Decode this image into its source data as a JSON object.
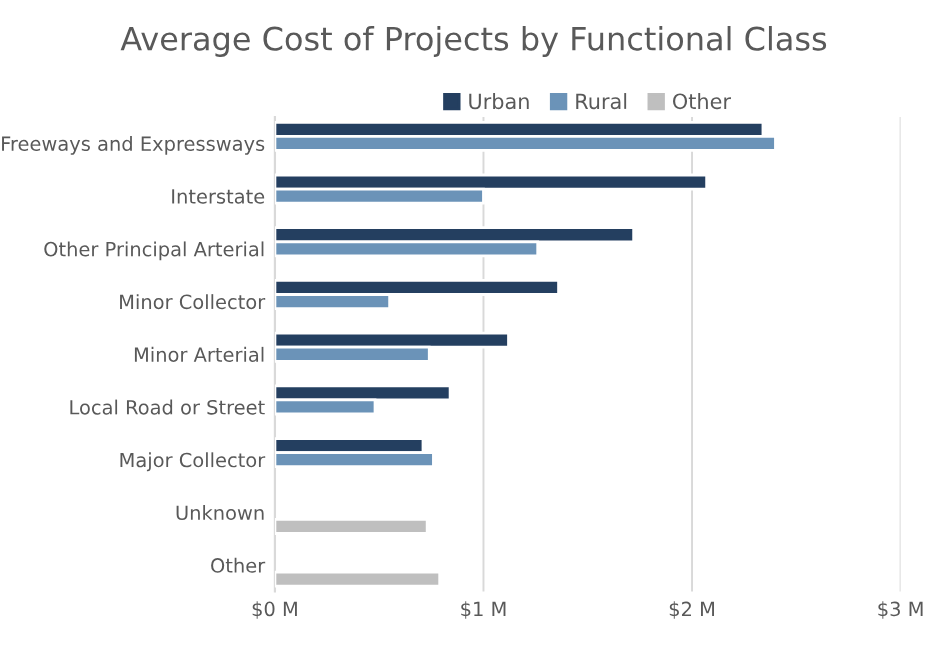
{
  "chart_data": {
    "type": "bar",
    "orientation": "horizontal",
    "title": "Average Cost of Projects by Functional Class",
    "categories": [
      "Freeways and Expressways",
      "Interstate",
      "Other Principal Arterial",
      "Minor Collector",
      "Minor Arterial",
      "Local Road or Street",
      "Major Collector",
      "Unknown",
      "Other"
    ],
    "series": [
      {
        "name": "Urban",
        "color": "#243f60",
        "values": [
          2.34,
          2.07,
          1.72,
          1.36,
          1.12,
          0.84,
          0.71,
          null,
          null
        ]
      },
      {
        "name": "Rural",
        "color": "#6b93b8",
        "values": [
          2.4,
          1.0,
          1.26,
          0.55,
          0.74,
          0.48,
          0.76,
          null,
          null
        ]
      },
      {
        "name": "Other",
        "color": "#bfbfbf",
        "values": [
          null,
          null,
          null,
          null,
          null,
          null,
          null,
          0.73,
          0.79
        ]
      }
    ],
    "xlim": [
      0,
      3
    ],
    "xticks": [
      {
        "value": 0,
        "label": "$0 M"
      },
      {
        "value": 1,
        "label": "$1 M"
      },
      {
        "value": 2,
        "label": "$2 M"
      },
      {
        "value": 3,
        "label": "$3 M"
      }
    ],
    "grid": "x",
    "legend": "top"
  }
}
